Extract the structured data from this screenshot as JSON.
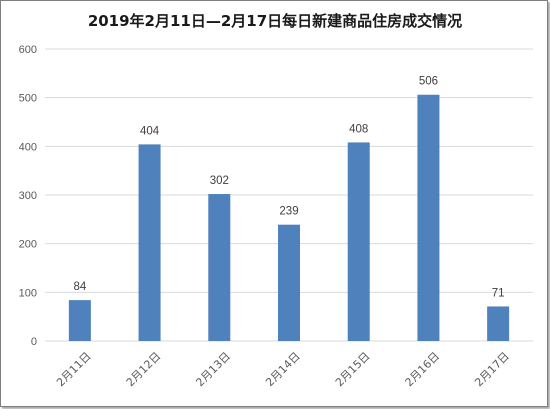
{
  "chart_data": {
    "type": "bar",
    "title": "2019年2月11日—2月17日每日新建商品住房成交情况",
    "xlabel": "",
    "ylabel": "",
    "categories": [
      "2月11日",
      "2月12日",
      "2月13日",
      "2月14日",
      "2月15日",
      "2月16日",
      "2月17日"
    ],
    "values": [
      84,
      404,
      302,
      239,
      408,
      506,
      71
    ],
    "ylim": [
      0,
      600
    ],
    "yticks": [
      0,
      100,
      200,
      300,
      400,
      500,
      600
    ],
    "grid": true,
    "legend": "none",
    "data_labels": true,
    "bar_color": "#4f81bd"
  }
}
